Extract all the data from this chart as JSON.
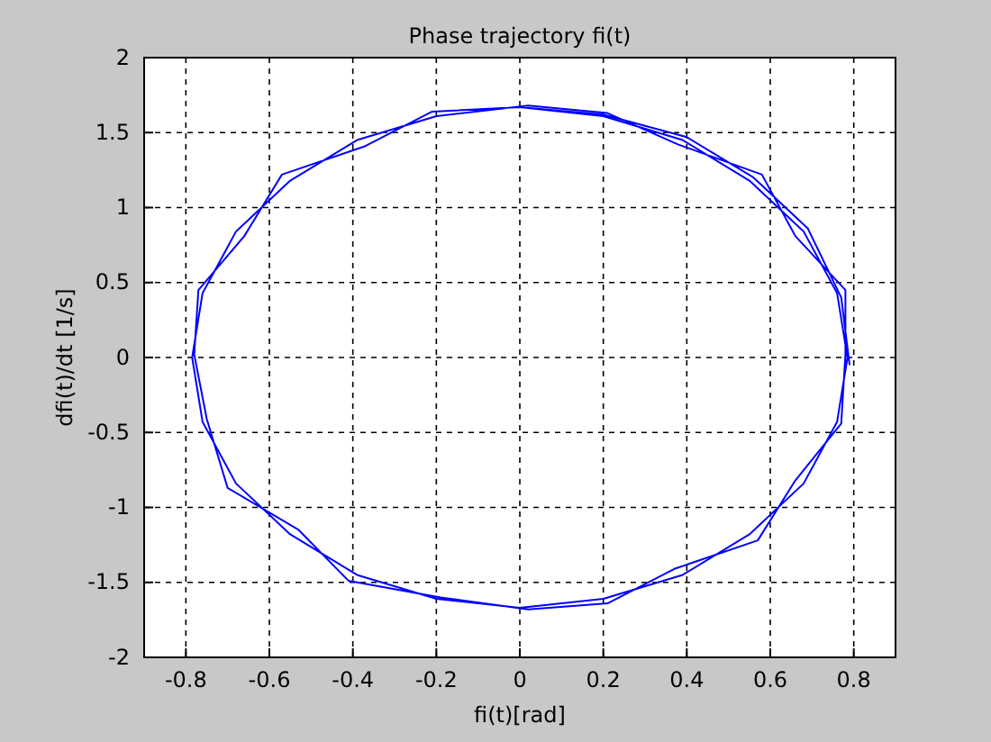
{
  "chart_data": {
    "type": "line",
    "title": "Phase trajectory fi(t)",
    "xlabel": "fi(t)[rad]",
    "ylabel": "dfi(t)/dt  [1/s]",
    "xlim": [
      -0.9,
      0.9
    ],
    "ylim": [
      -2,
      2
    ],
    "xticks": [
      -0.8,
      -0.6,
      -0.4,
      -0.2,
      0,
      0.2,
      0.4,
      0.6,
      0.8
    ],
    "yticks": [
      -2,
      -1.5,
      -1,
      -0.5,
      0,
      0.5,
      1,
      1.5,
      2
    ],
    "grid": true,
    "line_style": "solid",
    "marker": "none",
    "series": [
      {
        "color": "#0000ff",
        "x": [
          0,
          0.2,
          0.39,
          0.55,
          0.68,
          0.76,
          0.785,
          0.76,
          0.68,
          0.55,
          0.39,
          0.2,
          0,
          -0.2,
          -0.39,
          -0.55,
          -0.68,
          -0.76,
          -0.785,
          -0.76,
          -0.68,
          -0.55,
          -0.39,
          -0.2,
          0.02,
          0.21,
          0.38,
          0.58,
          0.66,
          0.78,
          0.78,
          0.77,
          0.66,
          0.57,
          0.37,
          0.21,
          0.02,
          -0.19,
          -0.41,
          -0.53,
          -0.7,
          -0.75,
          -0.78,
          -0.77,
          -0.66,
          -0.57,
          -0.37,
          -0.21,
          0,
          0.2,
          0.4,
          0.56,
          0.69,
          0.77,
          0.79
        ],
        "values": [
          1.67,
          1.61,
          1.45,
          1.18,
          0.84,
          0.43,
          0,
          -0.43,
          -0.84,
          -1.18,
          -1.45,
          -1.61,
          -1.67,
          -1.61,
          -1.45,
          -1.18,
          -0.84,
          -0.43,
          0,
          0.43,
          0.84,
          1.18,
          1.45,
          1.61,
          1.68,
          1.63,
          1.42,
          1.22,
          0.81,
          0.45,
          0.02,
          -0.44,
          -0.82,
          -1.22,
          -1.41,
          -1.64,
          -1.68,
          -1.6,
          -1.49,
          -1.15,
          -0.87,
          -0.41,
          0.02,
          0.45,
          0.81,
          1.22,
          1.41,
          1.64,
          1.67,
          1.62,
          1.47,
          1.2,
          0.86,
          0.4,
          -0.05
        ]
      }
    ]
  }
}
